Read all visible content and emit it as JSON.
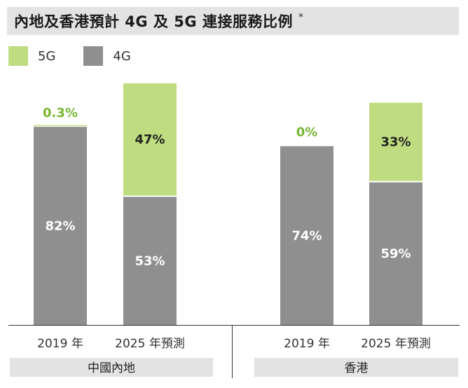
{
  "title": "內地及香港預計 4G 及 5G 連接服務比例",
  "title_mark": "*",
  "legend": [
    {
      "name": "5G",
      "color": "#bfdc80"
    },
    {
      "name": "4G",
      "color": "#8f8f8f"
    }
  ],
  "colors": {
    "g5_label": "#7ab635",
    "bar_text": "#ffffff",
    "value_dark": "#222222",
    "group_band": "#e3e3e3",
    "axis": "#333333"
  },
  "chart_data": {
    "type": "bar",
    "stacked": true,
    "title": "內地及香港預計 4G 及 5G 連接服務比例",
    "ylim": [
      0,
      100
    ],
    "groups": [
      {
        "name": "中國內地",
        "categories": [
          "2019 年",
          "2025 年預測"
        ]
      },
      {
        "name": "香港",
        "categories": [
          "2019 年",
          "2025 年預測"
        ]
      }
    ],
    "categories": [
      "2019 年",
      "2025 年預測",
      "2019 年",
      "2025 年預測"
    ],
    "series": [
      {
        "name": "4G",
        "values": [
          82,
          53,
          74,
          59
        ],
        "labels": [
          "82%",
          "53%",
          "74%",
          "59%"
        ]
      },
      {
        "name": "5G",
        "values": [
          0.3,
          47,
          0,
          33
        ],
        "labels": [
          "0.3%",
          "47%",
          "0%",
          "33%"
        ]
      }
    ]
  }
}
